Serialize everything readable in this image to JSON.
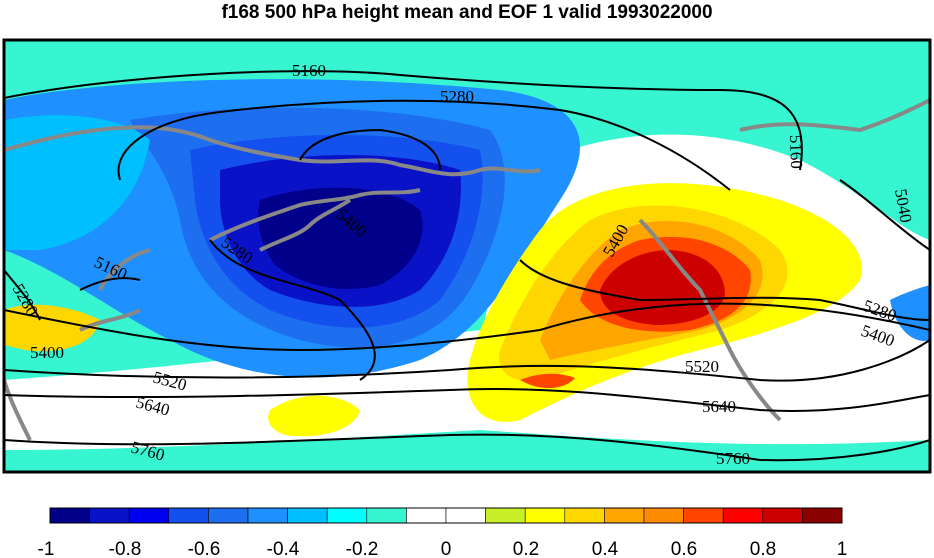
{
  "title": "f168 500 hPa height mean and EOF 1 valid 1993022000",
  "colors": {
    "scale": [
      "#00008b",
      "#0a12c8",
      "#0000f0",
      "#1450ee",
      "#1e6ef0",
      "#1e90ff",
      "#00bfff",
      "#00ffff",
      "#36f5d0",
      "#ffffff",
      "#ffffff",
      "#c8f028",
      "#ffff00",
      "#ffd700",
      "#ffa500",
      "#ff8c00",
      "#ff4500",
      "#ff0000",
      "#cd0000",
      "#8b0000"
    ],
    "coast": "#888888",
    "contour": "#000000"
  },
  "contour_labels": [
    "5160",
    "5280",
    "5400",
    "5520",
    "5640",
    "5760",
    "5040",
    "5160",
    "5280",
    "5400",
    "5280",
    "5400",
    "5520",
    "5640",
    "5760",
    "5160",
    "5280",
    "5400"
  ],
  "colorbar": {
    "tick_labels": [
      "-1",
      "-0.8",
      "-0.6",
      "-0.4",
      "-0.2",
      "0",
      "0.2",
      "0.4",
      "0.6",
      "0.8",
      "1"
    ]
  }
}
